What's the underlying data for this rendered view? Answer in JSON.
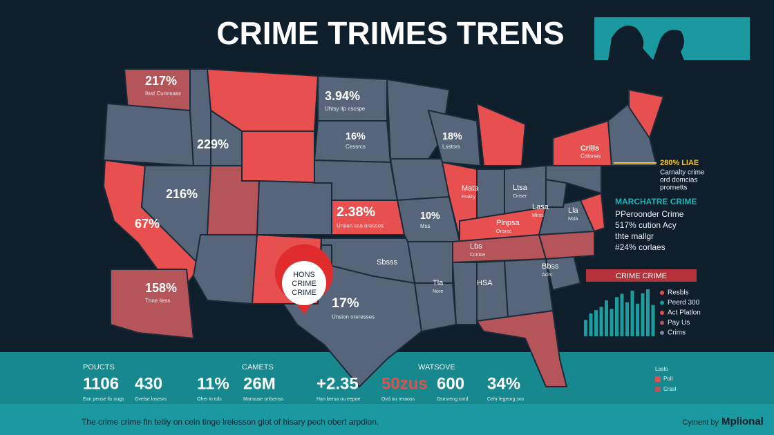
{
  "header": {
    "title": "CRIME TRIMES TRENS"
  },
  "map": {
    "callouts": [
      {
        "value": "217%",
        "caption": "Ilsst Cunnsass"
      },
      {
        "value": "229%"
      },
      {
        "value": "216%"
      },
      {
        "value": "67%"
      },
      {
        "value": "158%",
        "caption": "Tnne liess"
      },
      {
        "value": "3.94%",
        "caption": "Uhtsy itp cscspe"
      },
      {
        "value": "16%",
        "caption": "Cessrcs"
      },
      {
        "value": "2.38%",
        "caption": "Unsen sca oresses"
      },
      {
        "value": "10%",
        "caption": "Mss"
      },
      {
        "value": "17%",
        "caption": "Unsion oreresses"
      },
      {
        "value": "18%",
        "caption": "Lsstors"
      },
      {
        "value": "Crills",
        "caption": "Calanes"
      }
    ],
    "small_labels": [
      {
        "value": "Mata",
        "caption": "Frakry"
      },
      {
        "value": "Ltsa",
        "caption": "Cinser"
      },
      {
        "value": "Plnpsa",
        "caption": "Onsrec"
      },
      {
        "value": "Lasa",
        "caption": "Mirss"
      },
      {
        "value": "Lla",
        "caption": "Nsta"
      },
      {
        "value": "Lbs",
        "caption": "Ccntoe"
      },
      {
        "value": "Tla",
        "caption": "Nore"
      },
      {
        "value": "HSA"
      },
      {
        "value": "Sbsss"
      },
      {
        "value": "Bbss",
        "caption": "Aclrc"
      }
    ],
    "pin": {
      "lines": [
        "HONS",
        "CRIME",
        "CRIME"
      ]
    }
  },
  "side_panel": {
    "highlight": "280% LIAE",
    "highlight_lines": [
      "Carnalty crime",
      "ord domcias",
      "prornetts"
    ],
    "heading": "MARCHATRE CRIME",
    "lines": [
      "PPeroonder Crime",
      "517% cution Acy",
      "thte mallgr",
      "#24% corlaes"
    ]
  },
  "mini_chart": {
    "type": "bar",
    "title": "CRIME CRIME",
    "color": "#1a9ea0",
    "values": [
      25,
      35,
      40,
      45,
      55,
      42,
      60,
      65,
      52,
      70,
      50,
      66,
      72,
      48
    ]
  },
  "legend": {
    "items": [
      "Resbls",
      "Peerd 300",
      "Act Platlon",
      "Pay Us",
      "Crims"
    ],
    "colors": [
      "#e0504e",
      "#1a9ea0",
      "#e0504e",
      "#b5555a",
      "#7c8797"
    ]
  },
  "stats": {
    "headings": [
      "POUCTS",
      "CAMETS",
      "WATSOVE"
    ],
    "items": [
      {
        "value": "1106",
        "caption": "Ean pense fis ougs"
      },
      {
        "value": "430",
        "caption": "Ovelse losesrs"
      },
      {
        "value": "11%",
        "caption": "Oher in tols"
      },
      {
        "value": "26M",
        "caption": "Mansuse onlsenss"
      },
      {
        "value": "+2.35",
        "caption": "Han bersa ou eepoe"
      },
      {
        "value": "50zus",
        "caption": "Ovd ou reraoss"
      },
      {
        "value": "600",
        "caption": "Dsnsreng cord"
      },
      {
        "value": "34%",
        "caption": "Cehr legeorg sos"
      }
    ]
  },
  "footer": {
    "note": "The crime crime fin telliy on celn tinge lrelesson glot of hisary pech obert arpdion.",
    "credit_prefix": "Cyment by",
    "credit": "Mplional"
  },
  "corner_legend": {
    "title": "Lsslo",
    "items": [
      "Poll",
      "Crssl"
    ]
  }
}
